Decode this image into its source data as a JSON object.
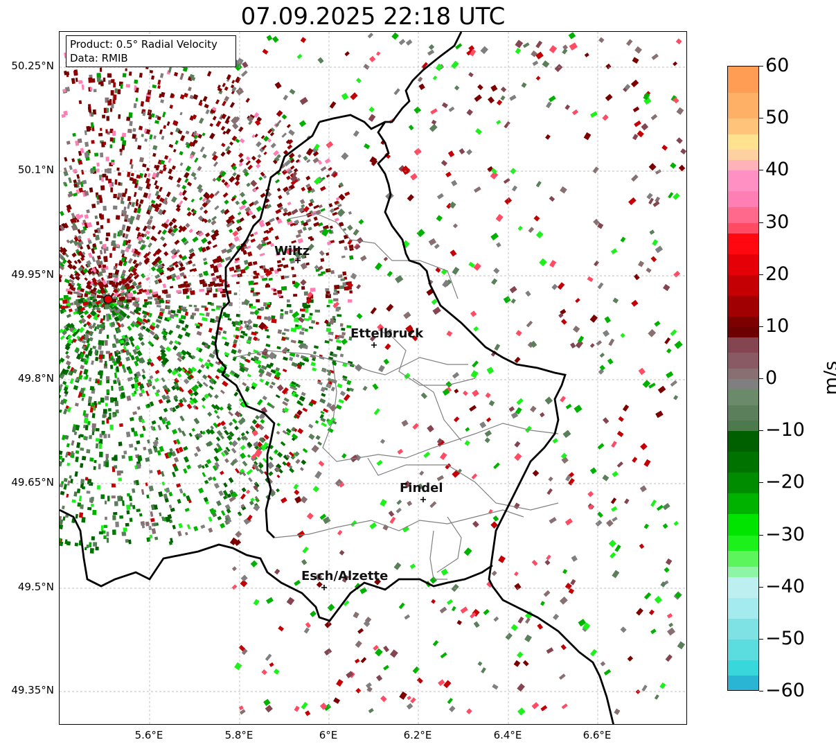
{
  "title": "07.09.2025 22:18 UTC",
  "info_box": {
    "product": "Product: 0.5° Radial Velocity",
    "data": "Data: RMIB"
  },
  "axes": {
    "lat_ticks": [
      "50.25°N",
      "50.1°N",
      "49.95°N",
      "49.8°N",
      "49.65°N",
      "49.5°N",
      "49.35°N"
    ],
    "lon_ticks": [
      "5.6°E",
      "5.8°E",
      "6°E",
      "6.2°E",
      "6.4°E",
      "6.6°E"
    ],
    "gridlines": true
  },
  "cities": [
    {
      "name": "Wiltz"
    },
    {
      "name": "Ettelbruck"
    },
    {
      "name": "Findel"
    },
    {
      "name": "Esch/Alzette"
    }
  ],
  "colorbar": {
    "unit": "m/s",
    "min": -60,
    "max": 60,
    "ticks": [
      "60",
      "50",
      "40",
      "30",
      "20",
      "10",
      "0",
      "−10",
      "−20",
      "−30",
      "−40",
      "−50",
      "−60"
    ]
  },
  "colors": {
    "border_country": "#000000",
    "border_canton": "#808080",
    "radar_marker": "#e00000"
  }
}
